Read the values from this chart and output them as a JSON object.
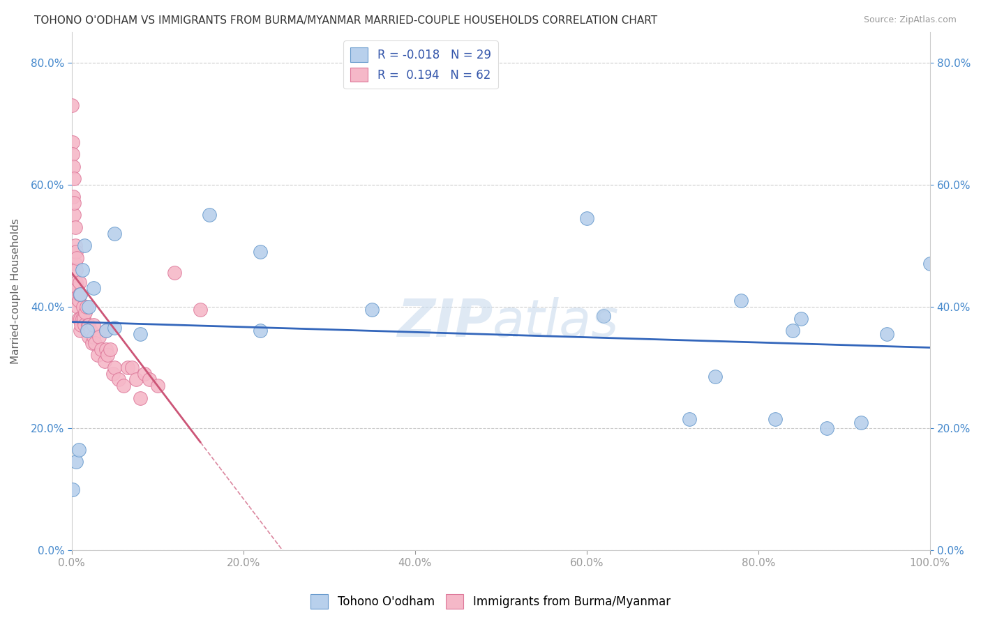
{
  "title": "TOHONO O'ODHAM VS IMMIGRANTS FROM BURMA/MYANMAR MARRIED-COUPLE HOUSEHOLDS CORRELATION CHART",
  "source": "Source: ZipAtlas.com",
  "ylabel": "Married-couple Households",
  "xlim": [
    0,
    1.0
  ],
  "ylim": [
    0,
    0.85
  ],
  "xticks": [
    0.0,
    0.2,
    0.4,
    0.6,
    0.8,
    1.0
  ],
  "yticks": [
    0.0,
    0.2,
    0.4,
    0.6,
    0.8
  ],
  "background_color": "#ffffff",
  "grid_color": "#cccccc",
  "watermark_zip": "ZIP",
  "watermark_atlas": "atlas",
  "blue_label": "Tohono O'odham",
  "pink_label": "Immigrants from Burma/Myanmar",
  "blue_R": -0.018,
  "blue_N": 29,
  "pink_R": 0.194,
  "pink_N": 62,
  "blue_fill_color": "#b8d0ec",
  "pink_fill_color": "#f5b8c8",
  "blue_edge_color": "#6699cc",
  "pink_edge_color": "#dd7799",
  "blue_line_color": "#3366bb",
  "pink_line_color": "#cc5577",
  "blue_scatter_x": [
    0.001,
    0.005,
    0.008,
    0.01,
    0.012,
    0.015,
    0.018,
    0.02,
    0.025,
    0.04,
    0.05,
    0.05,
    0.08,
    0.16,
    0.22,
    0.22,
    0.35,
    0.6,
    0.62,
    0.72,
    0.75,
    0.78,
    0.82,
    0.84,
    0.85,
    0.88,
    0.92,
    0.95,
    1.0
  ],
  "blue_scatter_y": [
    0.1,
    0.145,
    0.165,
    0.42,
    0.46,
    0.5,
    0.36,
    0.4,
    0.43,
    0.36,
    0.52,
    0.365,
    0.355,
    0.55,
    0.49,
    0.36,
    0.395,
    0.545,
    0.385,
    0.215,
    0.285,
    0.41,
    0.215,
    0.36,
    0.38,
    0.2,
    0.21,
    0.355,
    0.47
  ],
  "pink_scatter_x": [
    0.0005,
    0.001,
    0.001,
    0.002,
    0.002,
    0.003,
    0.003,
    0.003,
    0.004,
    0.004,
    0.004,
    0.005,
    0.005,
    0.005,
    0.006,
    0.006,
    0.007,
    0.007,
    0.008,
    0.008,
    0.009,
    0.009,
    0.01,
    0.01,
    0.01,
    0.011,
    0.012,
    0.013,
    0.014,
    0.015,
    0.016,
    0.017,
    0.018,
    0.019,
    0.02,
    0.02,
    0.022,
    0.024,
    0.025,
    0.025,
    0.027,
    0.03,
    0.032,
    0.034,
    0.038,
    0.04,
    0.04,
    0.042,
    0.045,
    0.048,
    0.05,
    0.055,
    0.06,
    0.065,
    0.07,
    0.075,
    0.08,
    0.085,
    0.09,
    0.1,
    0.12,
    0.15
  ],
  "pink_scatter_y": [
    0.73,
    0.67,
    0.65,
    0.58,
    0.63,
    0.55,
    0.57,
    0.61,
    0.47,
    0.5,
    0.53,
    0.44,
    0.46,
    0.49,
    0.42,
    0.48,
    0.4,
    0.43,
    0.38,
    0.41,
    0.42,
    0.44,
    0.36,
    0.38,
    0.42,
    0.37,
    0.38,
    0.4,
    0.38,
    0.37,
    0.39,
    0.4,
    0.36,
    0.37,
    0.35,
    0.37,
    0.36,
    0.34,
    0.35,
    0.37,
    0.34,
    0.32,
    0.35,
    0.33,
    0.31,
    0.33,
    0.36,
    0.32,
    0.33,
    0.29,
    0.3,
    0.28,
    0.27,
    0.3,
    0.3,
    0.28,
    0.25,
    0.29,
    0.28,
    0.27,
    0.455,
    0.395
  ]
}
